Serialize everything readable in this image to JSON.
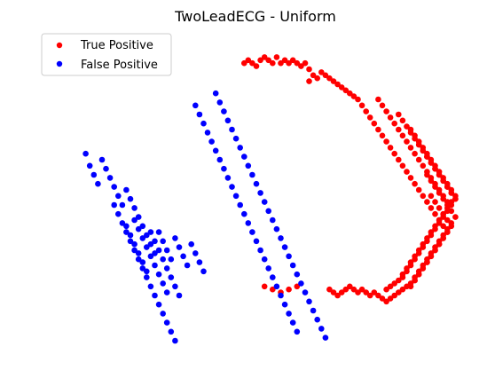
{
  "chart_data": {
    "type": "scatter",
    "title": "TwoLeadECG - Uniform",
    "xlabel": "",
    "ylabel": "",
    "axes_visible": false,
    "grid": false,
    "legend_placement": "top-left",
    "xlim": [
      0,
      100
    ],
    "ylim": [
      0,
      100
    ],
    "series": [
      {
        "name": "True Positive",
        "color": "#ff0000",
        "points": [
          [
            47,
            92
          ],
          [
            48,
            93
          ],
          [
            49,
            92
          ],
          [
            50,
            91
          ],
          [
            51,
            93
          ],
          [
            52,
            94
          ],
          [
            53,
            93
          ],
          [
            54,
            92
          ],
          [
            55,
            94
          ],
          [
            56,
            92
          ],
          [
            57,
            93
          ],
          [
            58,
            92
          ],
          [
            59,
            93
          ],
          [
            60,
            92
          ],
          [
            61,
            91
          ],
          [
            62,
            92
          ],
          [
            63,
            90
          ],
          [
            64,
            88
          ],
          [
            63,
            86
          ],
          [
            65,
            87
          ],
          [
            66,
            89
          ],
          [
            67,
            88
          ],
          [
            68,
            87
          ],
          [
            69,
            86
          ],
          [
            70,
            85
          ],
          [
            71,
            84
          ],
          [
            72,
            83
          ],
          [
            73,
            82
          ],
          [
            74,
            81
          ],
          [
            75,
            80
          ],
          [
            76,
            78
          ],
          [
            77,
            76
          ],
          [
            78,
            74
          ],
          [
            79,
            72
          ],
          [
            80,
            70
          ],
          [
            81,
            68
          ],
          [
            82,
            66
          ],
          [
            83,
            64
          ],
          [
            84,
            62
          ],
          [
            85,
            60
          ],
          [
            86,
            58
          ],
          [
            87,
            56
          ],
          [
            88,
            54
          ],
          [
            89,
            52
          ],
          [
            90,
            50
          ],
          [
            91,
            48
          ],
          [
            92,
            46
          ],
          [
            93,
            44
          ],
          [
            94,
            42
          ],
          [
            95,
            40
          ],
          [
            96,
            38
          ],
          [
            97,
            36
          ],
          [
            96,
            34
          ],
          [
            95,
            32
          ],
          [
            94,
            30
          ],
          [
            93,
            28
          ],
          [
            92,
            26
          ],
          [
            91,
            24
          ],
          [
            90,
            22
          ],
          [
            89,
            20
          ],
          [
            88,
            19
          ],
          [
            87,
            18
          ],
          [
            86,
            17
          ],
          [
            85,
            16
          ],
          [
            84,
            15
          ],
          [
            83,
            14
          ],
          [
            82,
            13
          ],
          [
            81,
            14
          ],
          [
            80,
            15
          ],
          [
            79,
            16
          ],
          [
            78,
            15
          ],
          [
            77,
            16
          ],
          [
            76,
            17
          ],
          [
            75,
            16
          ],
          [
            74,
            17
          ],
          [
            73,
            18
          ],
          [
            72,
            17
          ],
          [
            71,
            16
          ],
          [
            70,
            15
          ],
          [
            69,
            16
          ],
          [
            68,
            17
          ],
          [
            60,
            18
          ],
          [
            58,
            17
          ],
          [
            56,
            16
          ],
          [
            54,
            17
          ],
          [
            52,
            18
          ],
          [
            90,
            65
          ],
          [
            91,
            63
          ],
          [
            92,
            61
          ],
          [
            93,
            59
          ],
          [
            94,
            57
          ],
          [
            95,
            55
          ],
          [
            96,
            53
          ],
          [
            97,
            51
          ],
          [
            98,
            49
          ],
          [
            99,
            47
          ],
          [
            98,
            45
          ],
          [
            97,
            43
          ],
          [
            96,
            41
          ],
          [
            95,
            39
          ],
          [
            94,
            37
          ],
          [
            93,
            35
          ],
          [
            92,
            33
          ],
          [
            91,
            31
          ],
          [
            90,
            29
          ],
          [
            89,
            27
          ],
          [
            88,
            25
          ],
          [
            87,
            23
          ],
          [
            86,
            21
          ],
          [
            85,
            20
          ],
          [
            84,
            19
          ],
          [
            83,
            18
          ],
          [
            82,
            17
          ],
          [
            88,
            70
          ],
          [
            89,
            68
          ],
          [
            90,
            66
          ],
          [
            91,
            64
          ],
          [
            92,
            62
          ],
          [
            93,
            60
          ],
          [
            94,
            58
          ],
          [
            95,
            56
          ],
          [
            96,
            54
          ],
          [
            97,
            52
          ],
          [
            98,
            50
          ],
          [
            99,
            48
          ],
          [
            98,
            46
          ],
          [
            97,
            44
          ],
          [
            96,
            42
          ],
          [
            95,
            40
          ],
          [
            94,
            38
          ],
          [
            93,
            36
          ],
          [
            92,
            34
          ],
          [
            91,
            32
          ],
          [
            90,
            30
          ],
          [
            89,
            28
          ],
          [
            88,
            26
          ],
          [
            87,
            24
          ],
          [
            86,
            22
          ],
          [
            92,
            55
          ],
          [
            93,
            53
          ],
          [
            94,
            51
          ],
          [
            95,
            49
          ],
          [
            96,
            47
          ],
          [
            97,
            45
          ],
          [
            98,
            43
          ],
          [
            99,
            41
          ],
          [
            98,
            39
          ],
          [
            97,
            37
          ],
          [
            96,
            35
          ],
          [
            95,
            33
          ],
          [
            94,
            31
          ],
          [
            93,
            29
          ],
          [
            92,
            27
          ],
          [
            91,
            25
          ],
          [
            90,
            23
          ],
          [
            89,
            21
          ],
          [
            93,
            48
          ],
          [
            94,
            46
          ],
          [
            95,
            44
          ],
          [
            96,
            42
          ],
          [
            97,
            40
          ],
          [
            98,
            38
          ],
          [
            97,
            36
          ],
          [
            96,
            34
          ],
          [
            95,
            32
          ],
          [
            94,
            30
          ],
          [
            93,
            28
          ],
          [
            92,
            26
          ],
          [
            91,
            24
          ],
          [
            90,
            22
          ],
          [
            89,
            20
          ],
          [
            88,
            18
          ],
          [
            85,
            75
          ],
          [
            86,
            73
          ],
          [
            87,
            71
          ],
          [
            88,
            69
          ],
          [
            89,
            67
          ],
          [
            90,
            65
          ],
          [
            91,
            63
          ],
          [
            92,
            61
          ],
          [
            93,
            59
          ],
          [
            94,
            57
          ],
          [
            95,
            55
          ],
          [
            96,
            53
          ],
          [
            97,
            51
          ],
          [
            98,
            49
          ],
          [
            99,
            47
          ],
          [
            80,
            80
          ],
          [
            81,
            78
          ],
          [
            82,
            76
          ],
          [
            83,
            74
          ],
          [
            84,
            72
          ],
          [
            85,
            70
          ],
          [
            86,
            68
          ],
          [
            87,
            66
          ],
          [
            88,
            64
          ],
          [
            89,
            62
          ],
          [
            90,
            60
          ],
          [
            91,
            58
          ],
          [
            92,
            56
          ],
          [
            93,
            54
          ],
          [
            94,
            52
          ],
          [
            95,
            50
          ],
          [
            96,
            48
          ],
          [
            97,
            46
          ]
        ]
      },
      {
        "name": "False Positive",
        "color": "#0000ff",
        "points": [
          [
            8,
            62
          ],
          [
            9,
            58
          ],
          [
            10,
            55
          ],
          [
            11,
            52
          ],
          [
            12,
            60
          ],
          [
            13,
            57
          ],
          [
            14,
            54
          ],
          [
            15,
            51
          ],
          [
            16,
            48
          ],
          [
            17,
            45
          ],
          [
            18,
            50
          ],
          [
            19,
            47
          ],
          [
            20,
            44
          ],
          [
            21,
            41
          ],
          [
            22,
            38
          ],
          [
            23,
            35
          ],
          [
            24,
            32
          ],
          [
            25,
            29
          ],
          [
            26,
            36
          ],
          [
            27,
            33
          ],
          [
            28,
            30
          ],
          [
            29,
            27
          ],
          [
            30,
            34
          ],
          [
            31,
            31
          ],
          [
            32,
            28
          ],
          [
            33,
            25
          ],
          [
            34,
            32
          ],
          [
            35,
            29
          ],
          [
            36,
            26
          ],
          [
            37,
            23
          ],
          [
            18,
            38
          ],
          [
            19,
            35
          ],
          [
            20,
            32
          ],
          [
            21,
            29
          ],
          [
            22,
            26
          ],
          [
            23,
            23
          ],
          [
            24,
            36
          ],
          [
            25,
            33
          ],
          [
            26,
            30
          ],
          [
            27,
            27
          ],
          [
            28,
            24
          ],
          [
            29,
            21
          ],
          [
            30,
            18
          ],
          [
            31,
            15
          ],
          [
            20,
            40
          ],
          [
            21,
            37
          ],
          [
            22,
            34
          ],
          [
            23,
            31
          ],
          [
            24,
            28
          ],
          [
            25,
            25
          ],
          [
            26,
            22
          ],
          [
            27,
            19
          ],
          [
            28,
            16
          ],
          [
            15,
            45
          ],
          [
            16,
            42
          ],
          [
            17,
            39
          ],
          [
            18,
            36
          ],
          [
            19,
            33
          ],
          [
            20,
            30
          ],
          [
            21,
            27
          ],
          [
            22,
            24
          ],
          [
            23,
            21
          ],
          [
            24,
            18
          ],
          [
            25,
            15
          ],
          [
            26,
            12
          ],
          [
            27,
            9
          ],
          [
            28,
            6
          ],
          [
            29,
            3
          ],
          [
            30,
            0
          ],
          [
            35,
            78
          ],
          [
            36,
            75
          ],
          [
            37,
            72
          ],
          [
            38,
            69
          ],
          [
            39,
            66
          ],
          [
            40,
            63
          ],
          [
            41,
            60
          ],
          [
            42,
            57
          ],
          [
            43,
            54
          ],
          [
            44,
            51
          ],
          [
            45,
            48
          ],
          [
            46,
            45
          ],
          [
            47,
            42
          ],
          [
            48,
            39
          ],
          [
            49,
            36
          ],
          [
            50,
            33
          ],
          [
            51,
            30
          ],
          [
            52,
            27
          ],
          [
            53,
            24
          ],
          [
            54,
            21
          ],
          [
            55,
            18
          ],
          [
            56,
            15
          ],
          [
            57,
            12
          ],
          [
            58,
            9
          ],
          [
            59,
            6
          ],
          [
            60,
            3
          ],
          [
            40,
            82
          ],
          [
            41,
            79
          ],
          [
            42,
            76
          ],
          [
            43,
            73
          ],
          [
            44,
            70
          ],
          [
            45,
            67
          ],
          [
            46,
            64
          ],
          [
            47,
            61
          ],
          [
            48,
            58
          ],
          [
            49,
            55
          ],
          [
            50,
            52
          ],
          [
            51,
            49
          ],
          [
            52,
            46
          ],
          [
            53,
            43
          ],
          [
            54,
            40
          ],
          [
            55,
            37
          ],
          [
            56,
            34
          ],
          [
            57,
            31
          ],
          [
            58,
            28
          ],
          [
            59,
            25
          ],
          [
            60,
            22
          ],
          [
            61,
            19
          ],
          [
            62,
            16
          ],
          [
            63,
            13
          ],
          [
            64,
            10
          ],
          [
            65,
            7
          ],
          [
            66,
            4
          ],
          [
            67,
            1
          ]
        ]
      }
    ]
  }
}
